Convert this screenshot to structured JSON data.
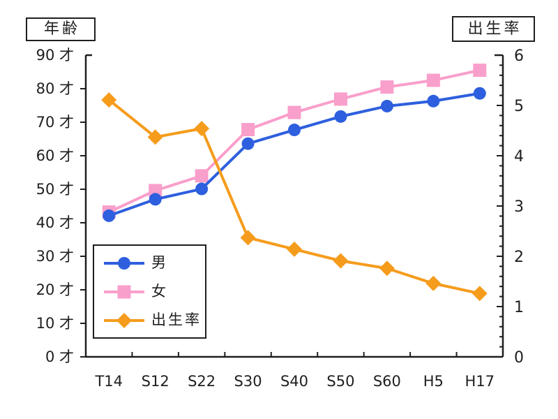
{
  "header": {
    "left_axis_box_label": "年齢",
    "right_axis_box_label": "出生率"
  },
  "chart_data": {
    "type": "line",
    "categories": [
      "T14",
      "S12",
      "S22",
      "S30",
      "S40",
      "S50",
      "S60",
      "H5",
      "H17"
    ],
    "series": [
      {
        "key": "male",
        "name": "男",
        "axis": "left",
        "marker": "circle",
        "color": "#2E5FDE",
        "values": [
          42.1,
          47.0,
          50.1,
          63.6,
          67.7,
          71.7,
          74.8,
          76.3,
          78.6
        ]
      },
      {
        "key": "female",
        "name": "女",
        "axis": "left",
        "marker": "square",
        "color": "#F99FCB",
        "values": [
          43.2,
          49.6,
          54.0,
          67.8,
          72.9,
          76.9,
          80.5,
          82.5,
          85.5
        ]
      },
      {
        "key": "birth-rate",
        "name": "出生率",
        "axis": "right",
        "marker": "diamond",
        "color": "#F59C1C",
        "values": [
          5.11,
          4.37,
          4.54,
          2.37,
          2.14,
          1.91,
          1.76,
          1.46,
          1.26
        ]
      }
    ],
    "left_axis": {
      "title": "年齢",
      "unit_suffix": "才",
      "min": 0,
      "max": 90,
      "tick_step": 10
    },
    "right_axis": {
      "title": "出生率",
      "min": 0,
      "max": 6,
      "tick_step": 1,
      "minor_tick_step": 0.2
    },
    "legend": {
      "position": "inside-bottom-left",
      "items": [
        "男",
        "女",
        "出生率"
      ]
    },
    "grid": false
  },
  "colors": {
    "background": "#ffffff",
    "axis": "#1f1f1f",
    "text": "#1f1f1f",
    "male": "#2E5FDE",
    "female": "#F99FCB",
    "birth_rate": "#F59C1C"
  }
}
